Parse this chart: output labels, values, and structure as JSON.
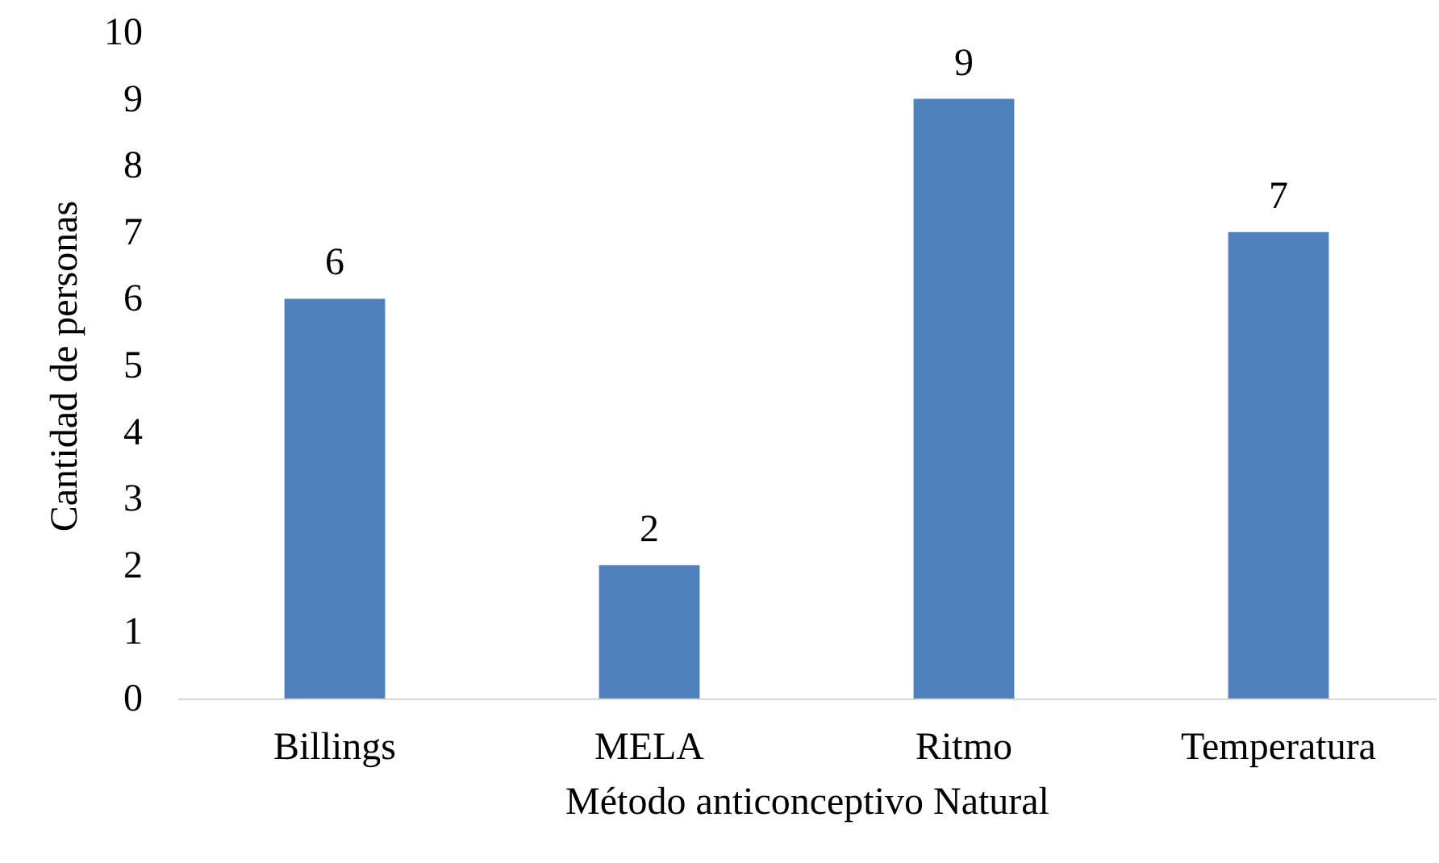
{
  "chart_data": {
    "type": "bar",
    "xlabel": "Método anticonceptivo Natural",
    "ylabel": "Cantidad de personas",
    "categories": [
      "Billings",
      "MELA",
      "Ritmo",
      "Temperatura"
    ],
    "values": [
      6,
      2,
      9,
      7
    ],
    "color": "#4f81bd",
    "ylim": [
      0,
      10
    ],
    "yticks": [
      0,
      1,
      2,
      3,
      4,
      5,
      6,
      7,
      8,
      9,
      10
    ],
    "grid": false,
    "data_labels": true
  }
}
